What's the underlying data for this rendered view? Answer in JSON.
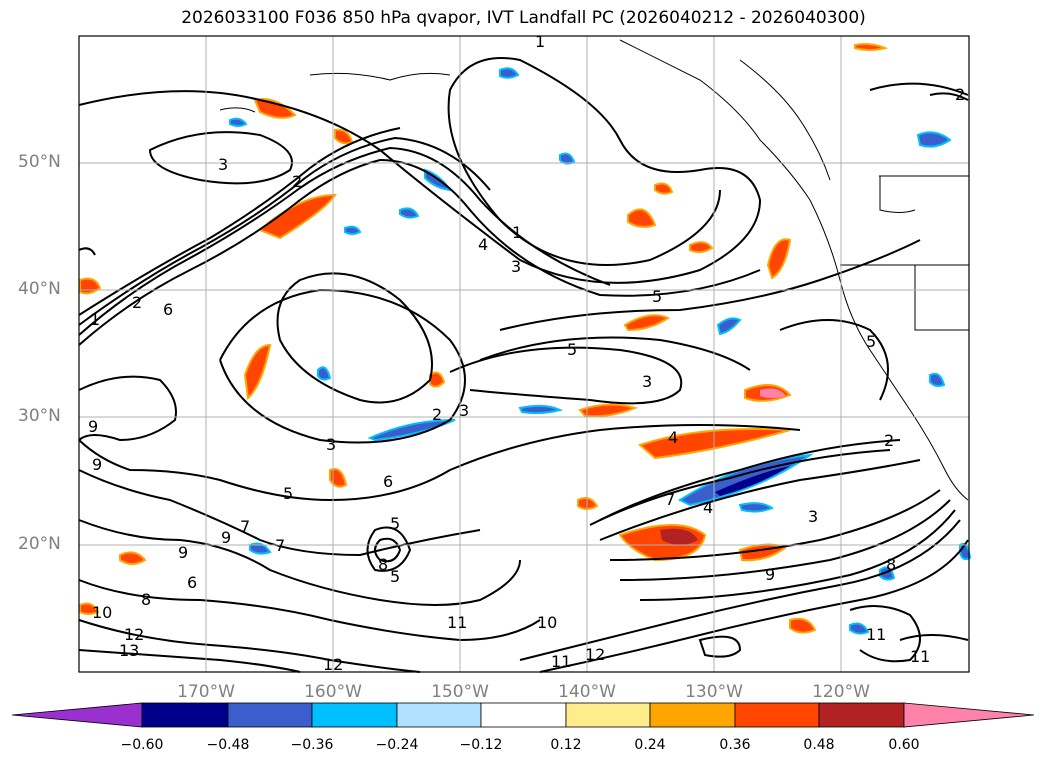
{
  "title": "2026033100 F036 850 hPa qvapor, IVT Landfall PC (2026040212 - 2026040300)",
  "axes": {
    "latitudes": [
      "50°N",
      "40°N",
      "30°N",
      "20°N"
    ],
    "longitudes": [
      "170°W",
      "160°W",
      "150°W",
      "140°W",
      "130°W",
      "120°W"
    ]
  },
  "colorbar": {
    "ticks": [
      "−0.60",
      "−0.48",
      "−0.36",
      "−0.24",
      "−0.12",
      "0.12",
      "0.24",
      "0.36",
      "0.48",
      "0.60"
    ],
    "colors": {
      "under": "#9b30d0",
      "bins": [
        "#00008b",
        "#3a5fcd",
        "#00bfff",
        "#b0e2ff",
        "#ffffff",
        "#ffec8b",
        "#ffa500",
        "#ff4500",
        "#b22222"
      ],
      "over": "#ff82ab"
    }
  },
  "contour_labels": [
    "1",
    "2",
    "3",
    "4",
    "5",
    "6",
    "7",
    "8",
    "9",
    "10",
    "11",
    "12",
    "13"
  ]
}
